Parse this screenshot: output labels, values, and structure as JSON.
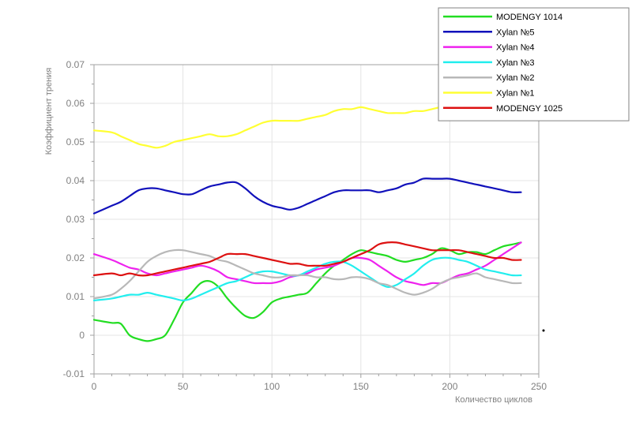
{
  "chart_data": {
    "type": "line",
    "title": "",
    "xlabel": "Количество циклов",
    "ylabel": "Коэффициент трения",
    "xlim": [
      0,
      250
    ],
    "ylim": [
      -0.01,
      0.07
    ],
    "x_ticks": [
      "0",
      "50",
      "100",
      "150",
      "200",
      "250"
    ],
    "y_ticks": [
      "-0.01",
      "0",
      "0.01",
      "0.02",
      "0.03",
      "0.04",
      "0.05",
      "0.06",
      "0.07"
    ],
    "grid": true,
    "legend_position": "top-right",
    "x": [
      0,
      10,
      15,
      20,
      25,
      30,
      35,
      40,
      45,
      50,
      55,
      60,
      65,
      70,
      75,
      80,
      85,
      90,
      95,
      100,
      105,
      110,
      115,
      120,
      125,
      130,
      135,
      140,
      145,
      150,
      155,
      160,
      165,
      170,
      175,
      180,
      185,
      190,
      195,
      200,
      205,
      210,
      215,
      220,
      225,
      230,
      235,
      240
    ],
    "series": [
      {
        "name": "MODENGY 1014",
        "color": "#22dd22",
        "values": [
          0.004,
          0.0032,
          0.003,
          0.0,
          -0.001,
          -0.0015,
          -0.001,
          0.0,
          0.004,
          0.0085,
          0.011,
          0.0135,
          0.014,
          0.0125,
          0.0095,
          0.007,
          0.005,
          0.0045,
          0.006,
          0.0085,
          0.0095,
          0.01,
          0.0105,
          0.011,
          0.0135,
          0.016,
          0.018,
          0.0195,
          0.021,
          0.022,
          0.0215,
          0.021,
          0.0205,
          0.0195,
          0.019,
          0.0195,
          0.02,
          0.021,
          0.0225,
          0.022,
          0.021,
          0.0215,
          0.0215,
          0.021,
          0.022,
          0.023,
          0.0235,
          0.024
        ]
      },
      {
        "name": "Xylan №5",
        "color": "#1111bb",
        "values": [
          0.0315,
          0.0335,
          0.0345,
          0.036,
          0.0375,
          0.038,
          0.038,
          0.0375,
          0.037,
          0.0365,
          0.0365,
          0.0375,
          0.0385,
          0.039,
          0.0395,
          0.0395,
          0.038,
          0.036,
          0.0345,
          0.0335,
          0.033,
          0.0325,
          0.033,
          0.034,
          0.035,
          0.036,
          0.037,
          0.0375,
          0.0375,
          0.0375,
          0.0375,
          0.037,
          0.0375,
          0.038,
          0.039,
          0.0395,
          0.0405,
          0.0405,
          0.0405,
          0.0405,
          0.04,
          0.0395,
          0.039,
          0.0385,
          0.038,
          0.0375,
          0.037,
          0.037
        ]
      },
      {
        "name": "Xylan №4",
        "color": "#ee22ee",
        "values": [
          0.021,
          0.0195,
          0.0185,
          0.0175,
          0.017,
          0.016,
          0.0155,
          0.016,
          0.0165,
          0.017,
          0.0175,
          0.018,
          0.0175,
          0.0165,
          0.015,
          0.0145,
          0.014,
          0.0135,
          0.0135,
          0.0135,
          0.014,
          0.015,
          0.0155,
          0.016,
          0.017,
          0.0175,
          0.018,
          0.019,
          0.02,
          0.02,
          0.0195,
          0.018,
          0.0165,
          0.015,
          0.014,
          0.0135,
          0.013,
          0.0135,
          0.0135,
          0.0145,
          0.0155,
          0.016,
          0.017,
          0.018,
          0.0195,
          0.021,
          0.0225,
          0.024
        ]
      },
      {
        "name": "Xylan №3",
        "color": "#22eeee",
        "values": [
          0.009,
          0.0095,
          0.01,
          0.0105,
          0.0105,
          0.011,
          0.0105,
          0.01,
          0.0095,
          0.009,
          0.0095,
          0.0105,
          0.0115,
          0.0125,
          0.0135,
          0.014,
          0.015,
          0.016,
          0.0165,
          0.0165,
          0.016,
          0.0155,
          0.0155,
          0.0165,
          0.0175,
          0.0185,
          0.019,
          0.019,
          0.018,
          0.0165,
          0.015,
          0.0135,
          0.0125,
          0.013,
          0.0145,
          0.016,
          0.018,
          0.0195,
          0.02,
          0.02,
          0.0195,
          0.019,
          0.018,
          0.017,
          0.0165,
          0.016,
          0.0155,
          0.0155
        ]
      },
      {
        "name": "Xylan №2",
        "color": "#b8b8b8",
        "values": [
          0.0095,
          0.0105,
          0.012,
          0.014,
          0.0165,
          0.019,
          0.0205,
          0.0215,
          0.022,
          0.022,
          0.0215,
          0.021,
          0.0205,
          0.0195,
          0.019,
          0.018,
          0.017,
          0.016,
          0.0155,
          0.015,
          0.015,
          0.0155,
          0.0155,
          0.0155,
          0.015,
          0.015,
          0.0145,
          0.0145,
          0.015,
          0.015,
          0.0145,
          0.0135,
          0.013,
          0.012,
          0.011,
          0.0105,
          0.011,
          0.012,
          0.0135,
          0.0145,
          0.015,
          0.0155,
          0.016,
          0.015,
          0.0145,
          0.014,
          0.0135,
          0.0135
        ]
      },
      {
        "name": "Xylan №1",
        "color": "#ffff33",
        "values": [
          0.053,
          0.0525,
          0.0515,
          0.0505,
          0.0495,
          0.049,
          0.0485,
          0.049,
          0.05,
          0.0505,
          0.051,
          0.0515,
          0.052,
          0.0515,
          0.0515,
          0.052,
          0.053,
          0.054,
          0.055,
          0.0555,
          0.0555,
          0.0555,
          0.0555,
          0.056,
          0.0565,
          0.057,
          0.058,
          0.0585,
          0.0585,
          0.059,
          0.0585,
          0.058,
          0.0575,
          0.0575,
          0.0575,
          0.058,
          0.058,
          0.0585,
          0.059,
          0.059,
          null,
          null,
          null,
          null,
          null,
          null,
          null,
          null
        ]
      },
      {
        "name": "MODENGY 1025",
        "color": "#dd1111",
        "values": [
          0.0155,
          0.016,
          0.0155,
          0.016,
          0.0155,
          0.0155,
          0.016,
          0.0165,
          0.017,
          0.0175,
          0.018,
          0.0185,
          0.019,
          0.02,
          0.021,
          0.021,
          0.021,
          0.0205,
          0.02,
          0.0195,
          0.019,
          0.0185,
          0.0185,
          0.018,
          0.018,
          0.018,
          0.0185,
          0.019,
          0.02,
          0.021,
          0.022,
          0.0235,
          0.024,
          0.024,
          0.0235,
          0.023,
          0.0225,
          0.022,
          0.022,
          0.022,
          0.022,
          0.0215,
          0.021,
          0.0205,
          0.02,
          0.02,
          0.0195,
          0.0195
        ]
      }
    ]
  }
}
